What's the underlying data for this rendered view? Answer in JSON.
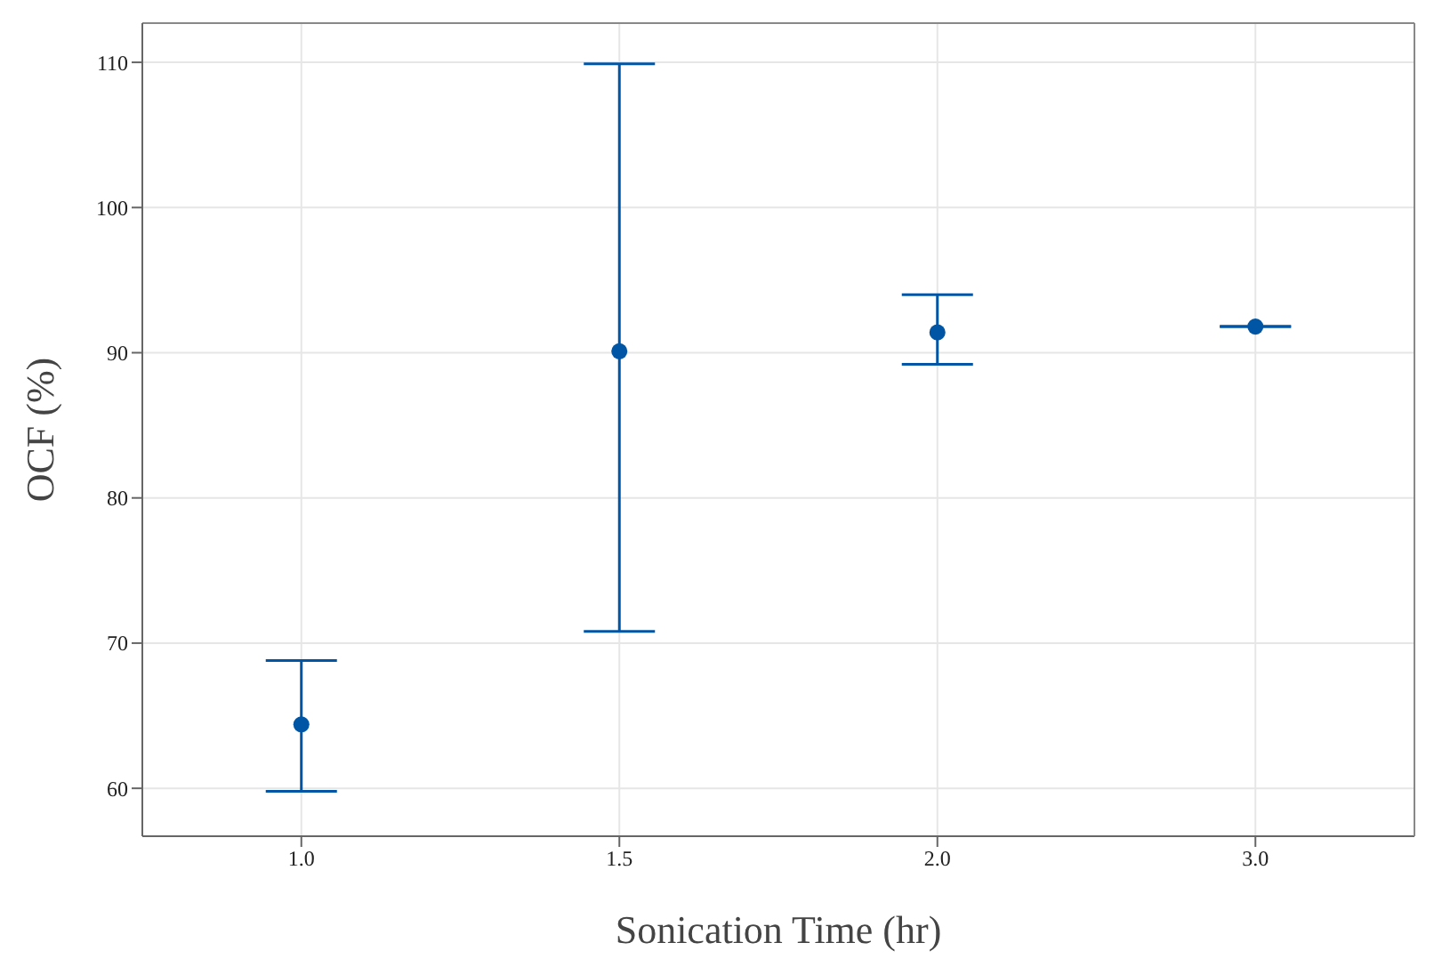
{
  "chart_data": {
    "type": "scatter",
    "xlabel": "Sonication Time (hr)",
    "ylabel": "OCF (%)",
    "categories": [
      "1.0",
      "1.5",
      "2.0",
      "3.0"
    ],
    "series": [
      {
        "color": "#0055a4",
        "values": [
          64.4,
          90.1,
          91.4,
          91.8
        ],
        "errors": [
          [
            59.8,
            68.8
          ],
          [
            70.8,
            109.9
          ],
          [
            89.2,
            94.0
          ],
          [
            91.8,
            91.8
          ]
        ]
      }
    ],
    "ylim": [
      56.7,
      112.7
    ],
    "yticks": [
      60,
      70,
      80,
      90,
      100,
      110
    ],
    "grid": true,
    "marker": "circle",
    "legend": false
  }
}
